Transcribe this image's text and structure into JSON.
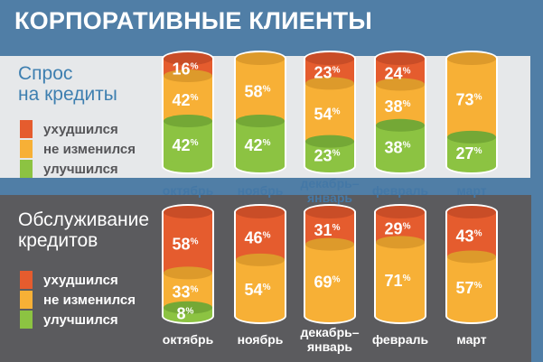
{
  "title": "КОРПОРАТИВНЫЕ КЛИЕНТЫ",
  "legend": {
    "worsened": "ухудшился",
    "unchanged": "не изменился",
    "improved": "улучшился"
  },
  "colors": {
    "worsened": "#e55c2e",
    "unchanged": "#f7b036",
    "improved": "#8cc342"
  },
  "sections": [
    {
      "title_line1": "Спрос",
      "title_line2": "на кредиты"
    },
    {
      "title_line1": "Обслуживание",
      "title_line2": "кредитов"
    }
  ],
  "chart_data": [
    {
      "type": "bar",
      "title": "Спрос на кредиты",
      "stacked": true,
      "categories": [
        "октябрь",
        "ноябрь",
        "декабрь–январь",
        "февраль",
        "март"
      ],
      "series": [
        {
          "name": "ухудшился",
          "values": [
            16,
            0,
            23,
            24,
            0
          ]
        },
        {
          "name": "не изменился",
          "values": [
            42,
            58,
            54,
            38,
            73
          ]
        },
        {
          "name": "улучшился",
          "values": [
            42,
            42,
            23,
            38,
            27
          ]
        }
      ],
      "unit": "%"
    },
    {
      "type": "bar",
      "title": "Обслуживание кредитов",
      "stacked": true,
      "categories": [
        "октябрь",
        "ноябрь",
        "декабрь–январь",
        "февраль",
        "март"
      ],
      "series": [
        {
          "name": "ухудшился",
          "values": [
            58,
            46,
            31,
            29,
            43
          ]
        },
        {
          "name": "не изменился",
          "values": [
            33,
            54,
            69,
            71,
            57
          ]
        },
        {
          "name": "улучшился",
          "values": [
            8,
            0,
            0,
            0,
            0
          ]
        }
      ],
      "unit": "%"
    }
  ]
}
